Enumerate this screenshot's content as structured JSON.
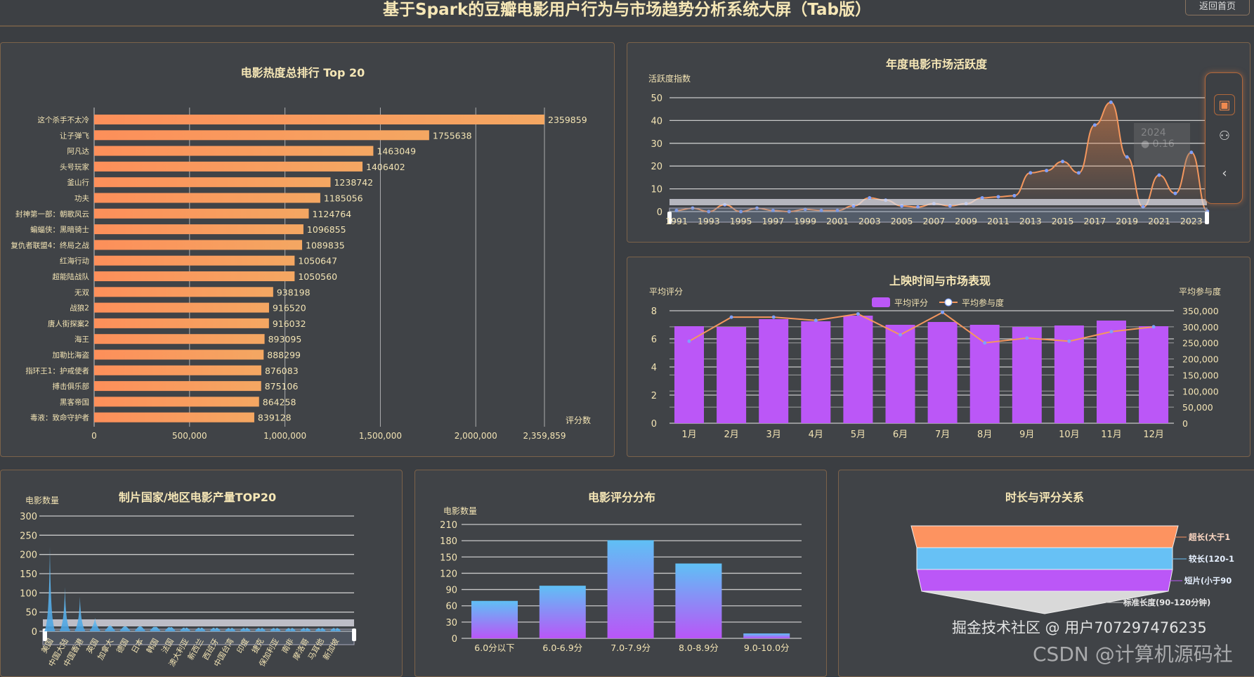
{
  "header": {
    "title": "基于Spark的豆瓣电影用户行为与市场趋势分析系统大屏（Tab版）",
    "back_label": "返回首页"
  },
  "colors": {
    "accent": "#f4975e",
    "purple": "#bb57f7",
    "blue": "#67c1f5",
    "text": "#f3e4b4",
    "border": "#7b624a"
  },
  "toolbar": {
    "icons": [
      "presentation-icon",
      "user-icon",
      "chevron-left-icon"
    ]
  },
  "tooltip": {
    "year": "2024",
    "value": "0.16"
  },
  "watermark": {
    "juejin": "掘金技术社区 @ 用户707297476235",
    "csdn": "CSDN @计算机源码社"
  },
  "chart_data": [
    {
      "id": "top20",
      "type": "bar",
      "orientation": "horizontal",
      "title": "电影热度总排行 Top 20",
      "xlabel": "评分数",
      "categories": [
        "这个杀手不太冷",
        "让子弹飞",
        "阿凡达",
        "头号玩家",
        "釜山行",
        "功夫",
        "封神第一部：朝歌风云",
        "蝙蝠侠：黑暗骑士",
        "复仇者联盟4：终局之战",
        "红海行动",
        "超能陆战队",
        "无双",
        "战狼2",
        "唐人街探案2",
        "海王",
        "加勒比海盗",
        "指环王1：护戒使者",
        "搏击俱乐部",
        "黑客帝国",
        "毒液：致命守护者"
      ],
      "values": [
        2359859,
        1755638,
        1463049,
        1406402,
        1238742,
        1185056,
        1124764,
        1096855,
        1089835,
        1050647,
        1050560,
        938198,
        916520,
        916032,
        893095,
        888299,
        876083,
        875106,
        864258,
        839128
      ],
      "xticks": [
        "0",
        "500,000",
        "1,000,000",
        "1,500,000",
        "2,000,000",
        "2,359,859"
      ],
      "xlim": [
        0,
        2359859
      ],
      "grid": true
    },
    {
      "id": "yearly",
      "type": "area",
      "title": "年度电影市场活跃度",
      "ylabel": "活跃度指数",
      "ylim": [
        0,
        50
      ],
      "yticks": [
        "0",
        "10",
        "20",
        "30",
        "40",
        "50"
      ],
      "x": [
        1991,
        1992,
        1993,
        1994,
        1995,
        1996,
        1997,
        1998,
        1999,
        2000,
        2001,
        2002,
        2003,
        2004,
        2005,
        2006,
        2007,
        2008,
        2009,
        2010,
        2011,
        2012,
        2013,
        2014,
        2015,
        2016,
        2017,
        2018,
        2019,
        2020,
        2021,
        2022,
        2023,
        2024
      ],
      "xticks": [
        "1991",
        "1993",
        "1995",
        "1997",
        "1999",
        "2001",
        "2003",
        "2005",
        "2007",
        "2009",
        "2011",
        "2013",
        "2015",
        "2017",
        "2019",
        "2021",
        "2023"
      ],
      "values": [
        0.5,
        1.5,
        0,
        3,
        0,
        1.5,
        0.5,
        0,
        1,
        0.5,
        0.5,
        2.5,
        6,
        5,
        2.5,
        2,
        3.5,
        2.5,
        3.5,
        6,
        6.5,
        7,
        17,
        18,
        22,
        17,
        38,
        48,
        24,
        2,
        16,
        8,
        26,
        0.16
      ],
      "grid": true
    },
    {
      "id": "monthly",
      "type": "bar+line",
      "title": "上映时间与市场表现",
      "ylabel_left": "平均评分",
      "ylabel_right": "平均参与度",
      "categories": [
        "1月",
        "2月",
        "3月",
        "4月",
        "5月",
        "6月",
        "7月",
        "8月",
        "9月",
        "10月",
        "11月",
        "12月"
      ],
      "series": [
        {
          "name": "平均评分",
          "type": "bar",
          "values": [
            6.9,
            6.85,
            7.4,
            7.25,
            7.65,
            7.0,
            7.2,
            7.0,
            6.85,
            6.95,
            7.3,
            6.9
          ]
        },
        {
          "name": "平均参与度",
          "type": "line",
          "values": [
            255000,
            330000,
            330000,
            320000,
            340000,
            275000,
            345000,
            250000,
            265000,
            255000,
            285000,
            300000
          ]
        }
      ],
      "ylim_left": [
        0,
        8
      ],
      "yticks_left": [
        "0",
        "2",
        "4",
        "6",
        "8"
      ],
      "ylim_right": [
        0,
        350000
      ],
      "yticks_right": [
        "0",
        "50,000",
        "100,000",
        "150,000",
        "200,000",
        "250,000",
        "300,000",
        "350,000"
      ],
      "legend": "top"
    },
    {
      "id": "country",
      "type": "pictorial-bar",
      "title": "制片国家/地区电影产量TOP20",
      "ylabel": "电影数量",
      "ylim": [
        0,
        300
      ],
      "yticks": [
        "0",
        "50",
        "100",
        "150",
        "200",
        "250",
        "300"
      ],
      "categories": [
        "美国",
        "中国大陆",
        "中国香港",
        "英国",
        "加拿大",
        "德国",
        "日本",
        "韩国",
        "法国",
        "澳大利亚",
        "新西兰",
        "西班牙",
        "中国台湾",
        "印度",
        "捷克",
        "保加利亚",
        "南非",
        "摩洛哥",
        "马耳他",
        "新加坡"
      ],
      "values": [
        220,
        115,
        90,
        35,
        15,
        12,
        12,
        10,
        8,
        5,
        4,
        3,
        2,
        2,
        2,
        1,
        1,
        1,
        1,
        1
      ]
    },
    {
      "id": "score",
      "type": "bar",
      "title": "电影评分分布",
      "ylabel": "电影数量",
      "ylim": [
        0,
        210
      ],
      "yticks": [
        "0",
        "30",
        "60",
        "90",
        "120",
        "150",
        "180",
        "210"
      ],
      "categories": [
        "6.0分以下",
        "6.0-6.9分",
        "7.0-7.9分",
        "8.0-8.9分",
        "9.0-10.0分"
      ],
      "values": [
        69,
        97,
        181,
        138,
        9
      ]
    },
    {
      "id": "duration",
      "type": "funnel",
      "title": "时长与评分关系",
      "categories": [
        "超长(大于1",
        "较长(120-1",
        "短片(小于90",
        "标准长度(90-120分钟)"
      ],
      "colors": [
        "#fd9360",
        "#67c1f5",
        "#bb57f7",
        "#d9d9d9"
      ]
    }
  ]
}
